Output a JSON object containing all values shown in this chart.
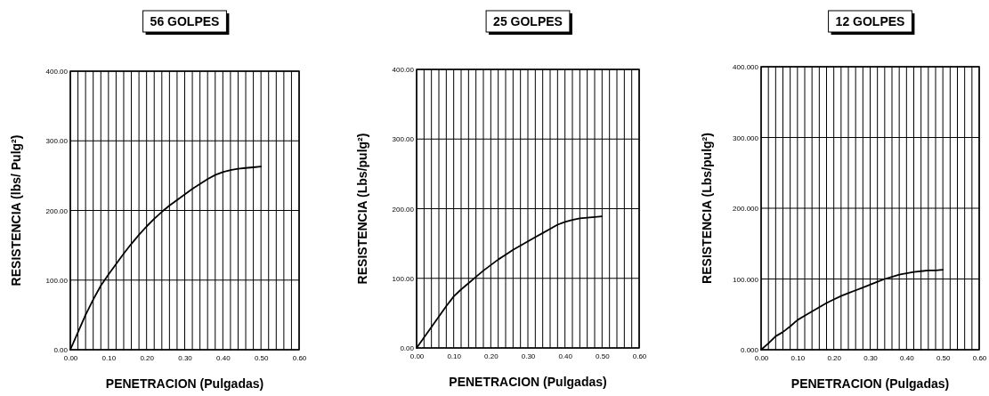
{
  "chart_data": [
    {
      "type": "line",
      "title": "56 GOLPES",
      "xlabel": "PENETRACION (Pulgadas)",
      "ylabel": "RESISTENCIA (lbs/ Pulg²)",
      "x": [
        0,
        0.02,
        0.04,
        0.06,
        0.08,
        0.1,
        0.12,
        0.14,
        0.16,
        0.18,
        0.2,
        0.22,
        0.24,
        0.26,
        0.28,
        0.3,
        0.32,
        0.34,
        0.36,
        0.38,
        0.4,
        0.42,
        0.44,
        0.46,
        0.48,
        0.5
      ],
      "series": [
        {
          "color": "#000000",
          "values": [
            0,
            25,
            50,
            72,
            92,
            108,
            123,
            138,
            152,
            165,
            177,
            188,
            198,
            207,
            215,
            223,
            231,
            238,
            245,
            251,
            255,
            258,
            260,
            261,
            262,
            263
          ]
        }
      ],
      "xlim": [
        0,
        0.6
      ],
      "ylim": [
        0,
        400
      ],
      "xticks": [
        {
          "value": 0,
          "label": "0.00"
        },
        {
          "value": 0.02,
          "label": null
        },
        {
          "value": 0.04,
          "label": null
        },
        {
          "value": 0.06,
          "label": null
        },
        {
          "value": 0.08,
          "label": null
        },
        {
          "value": 0.1,
          "label": "0.10"
        },
        {
          "value": 0.12,
          "label": null
        },
        {
          "value": 0.14,
          "label": null
        },
        {
          "value": 0.16,
          "label": null
        },
        {
          "value": 0.18,
          "label": null
        },
        {
          "value": 0.2,
          "label": "0.20"
        },
        {
          "value": 0.22,
          "label": null
        },
        {
          "value": 0.24,
          "label": null
        },
        {
          "value": 0.26,
          "label": null
        },
        {
          "value": 0.28,
          "label": null
        },
        {
          "value": 0.3,
          "label": "0.30"
        },
        {
          "value": 0.32,
          "label": null
        },
        {
          "value": 0.34,
          "label": null
        },
        {
          "value": 0.36,
          "label": null
        },
        {
          "value": 0.38,
          "label": null
        },
        {
          "value": 0.4,
          "label": "0.40"
        },
        {
          "value": 0.42,
          "label": null
        },
        {
          "value": 0.44,
          "label": null
        },
        {
          "value": 0.46,
          "label": null
        },
        {
          "value": 0.48,
          "label": null
        },
        {
          "value": 0.5,
          "label": "0.50"
        },
        {
          "value": 0.52,
          "label": null
        },
        {
          "value": 0.54,
          "label": null
        },
        {
          "value": 0.56,
          "label": null
        },
        {
          "value": 0.58,
          "label": null
        },
        {
          "value": 0.6,
          "label": "0.60"
        }
      ],
      "yticks": [
        {
          "value": 0,
          "label": "0.00"
        },
        {
          "value": 100,
          "label": "100.00"
        },
        {
          "value": 200,
          "label": "200.00"
        },
        {
          "value": 300,
          "label": "300.00"
        },
        {
          "value": 400,
          "label": "400.00"
        }
      ],
      "grid": true,
      "marker": "none",
      "line_style": "solid"
    },
    {
      "type": "line",
      "title": "25 GOLPES",
      "xlabel": "PENETRACION (Pulgadas)",
      "ylabel": "RESISTENCIA (Lbs/pulg²)",
      "x": [
        0,
        0.02,
        0.04,
        0.06,
        0.08,
        0.1,
        0.12,
        0.14,
        0.16,
        0.18,
        0.2,
        0.22,
        0.24,
        0.26,
        0.28,
        0.3,
        0.32,
        0.34,
        0.36,
        0.38,
        0.4,
        0.42,
        0.44,
        0.46,
        0.48,
        0.5
      ],
      "series": [
        {
          "color": "#000000",
          "values": [
            0,
            15,
            30,
            45,
            60,
            74,
            84,
            93,
            102,
            111,
            119,
            127,
            134,
            141,
            147,
            153,
            159,
            165,
            171,
            177,
            181,
            184,
            186,
            187,
            188,
            189
          ]
        }
      ],
      "xlim": [
        0,
        0.6
      ],
      "ylim": [
        0,
        400
      ],
      "xticks": [
        {
          "value": 0,
          "label": "0.00"
        },
        {
          "value": 0.02,
          "label": null
        },
        {
          "value": 0.04,
          "label": null
        },
        {
          "value": 0.06,
          "label": null
        },
        {
          "value": 0.08,
          "label": null
        },
        {
          "value": 0.1,
          "label": "0.10"
        },
        {
          "value": 0.12,
          "label": null
        },
        {
          "value": 0.14,
          "label": null
        },
        {
          "value": 0.16,
          "label": null
        },
        {
          "value": 0.18,
          "label": null
        },
        {
          "value": 0.2,
          "label": "0.20"
        },
        {
          "value": 0.22,
          "label": null
        },
        {
          "value": 0.24,
          "label": null
        },
        {
          "value": 0.26,
          "label": null
        },
        {
          "value": 0.28,
          "label": null
        },
        {
          "value": 0.3,
          "label": "0.30"
        },
        {
          "value": 0.32,
          "label": null
        },
        {
          "value": 0.34,
          "label": null
        },
        {
          "value": 0.36,
          "label": null
        },
        {
          "value": 0.38,
          "label": null
        },
        {
          "value": 0.4,
          "label": "0.40"
        },
        {
          "value": 0.42,
          "label": null
        },
        {
          "value": 0.44,
          "label": null
        },
        {
          "value": 0.46,
          "label": null
        },
        {
          "value": 0.48,
          "label": null
        },
        {
          "value": 0.5,
          "label": "0.50"
        },
        {
          "value": 0.52,
          "label": null
        },
        {
          "value": 0.54,
          "label": null
        },
        {
          "value": 0.56,
          "label": null
        },
        {
          "value": 0.58,
          "label": null
        },
        {
          "value": 0.6,
          "label": "0.60"
        }
      ],
      "yticks": [
        {
          "value": 0,
          "label": "0.00"
        },
        {
          "value": 100,
          "label": "100.00"
        },
        {
          "value": 200,
          "label": "200.00"
        },
        {
          "value": 300,
          "label": "300.00"
        },
        {
          "value": 400,
          "label": "400.00"
        }
      ],
      "grid": true,
      "marker": "none",
      "line_style": "solid"
    },
    {
      "type": "line",
      "title": "12 GOLPES",
      "xlabel": "PENETRACION (Pulgadas)",
      "ylabel": "RESISTENCIA (Lbs/pulg²)",
      "x": [
        0,
        0.02,
        0.04,
        0.06,
        0.08,
        0.1,
        0.12,
        0.14,
        0.16,
        0.18,
        0.2,
        0.22,
        0.24,
        0.26,
        0.28,
        0.3,
        0.32,
        0.34,
        0.36,
        0.38,
        0.4,
        0.42,
        0.44,
        0.46,
        0.48,
        0.5
      ],
      "series": [
        {
          "color": "#000000",
          "values": [
            0,
            9,
            19,
            25,
            33,
            42,
            48,
            54,
            60,
            66,
            71,
            76,
            80,
            84,
            88,
            92,
            96,
            100,
            103,
            106,
            108,
            110,
            111,
            112,
            112,
            113
          ]
        }
      ],
      "xlim": [
        0,
        0.6
      ],
      "ylim": [
        0,
        400
      ],
      "xticks": [
        {
          "value": 0,
          "label": "0.00"
        },
        {
          "value": 0.02,
          "label": null
        },
        {
          "value": 0.04,
          "label": null
        },
        {
          "value": 0.06,
          "label": null
        },
        {
          "value": 0.08,
          "label": null
        },
        {
          "value": 0.1,
          "label": "0.10"
        },
        {
          "value": 0.12,
          "label": null
        },
        {
          "value": 0.14,
          "label": null
        },
        {
          "value": 0.16,
          "label": null
        },
        {
          "value": 0.18,
          "label": null
        },
        {
          "value": 0.2,
          "label": "0.20"
        },
        {
          "value": 0.22,
          "label": null
        },
        {
          "value": 0.24,
          "label": null
        },
        {
          "value": 0.26,
          "label": null
        },
        {
          "value": 0.28,
          "label": null
        },
        {
          "value": 0.3,
          "label": "0.30"
        },
        {
          "value": 0.32,
          "label": null
        },
        {
          "value": 0.34,
          "label": null
        },
        {
          "value": 0.36,
          "label": null
        },
        {
          "value": 0.38,
          "label": null
        },
        {
          "value": 0.4,
          "label": "0.40"
        },
        {
          "value": 0.42,
          "label": null
        },
        {
          "value": 0.44,
          "label": null
        },
        {
          "value": 0.46,
          "label": null
        },
        {
          "value": 0.48,
          "label": null
        },
        {
          "value": 0.5,
          "label": "0.50"
        },
        {
          "value": 0.52,
          "label": null
        },
        {
          "value": 0.54,
          "label": null
        },
        {
          "value": 0.56,
          "label": null
        },
        {
          "value": 0.58,
          "label": null
        },
        {
          "value": 0.6,
          "label": "0.60"
        }
      ],
      "yticks": [
        {
          "value": 0,
          "label": "0.000"
        },
        {
          "value": 100,
          "label": "100.000"
        },
        {
          "value": 200,
          "label": "200.000"
        },
        {
          "value": 300,
          "label": "300.000"
        },
        {
          "value": 400,
          "label": "400.000"
        }
      ],
      "grid": true,
      "marker": "none",
      "line_style": "solid"
    }
  ]
}
